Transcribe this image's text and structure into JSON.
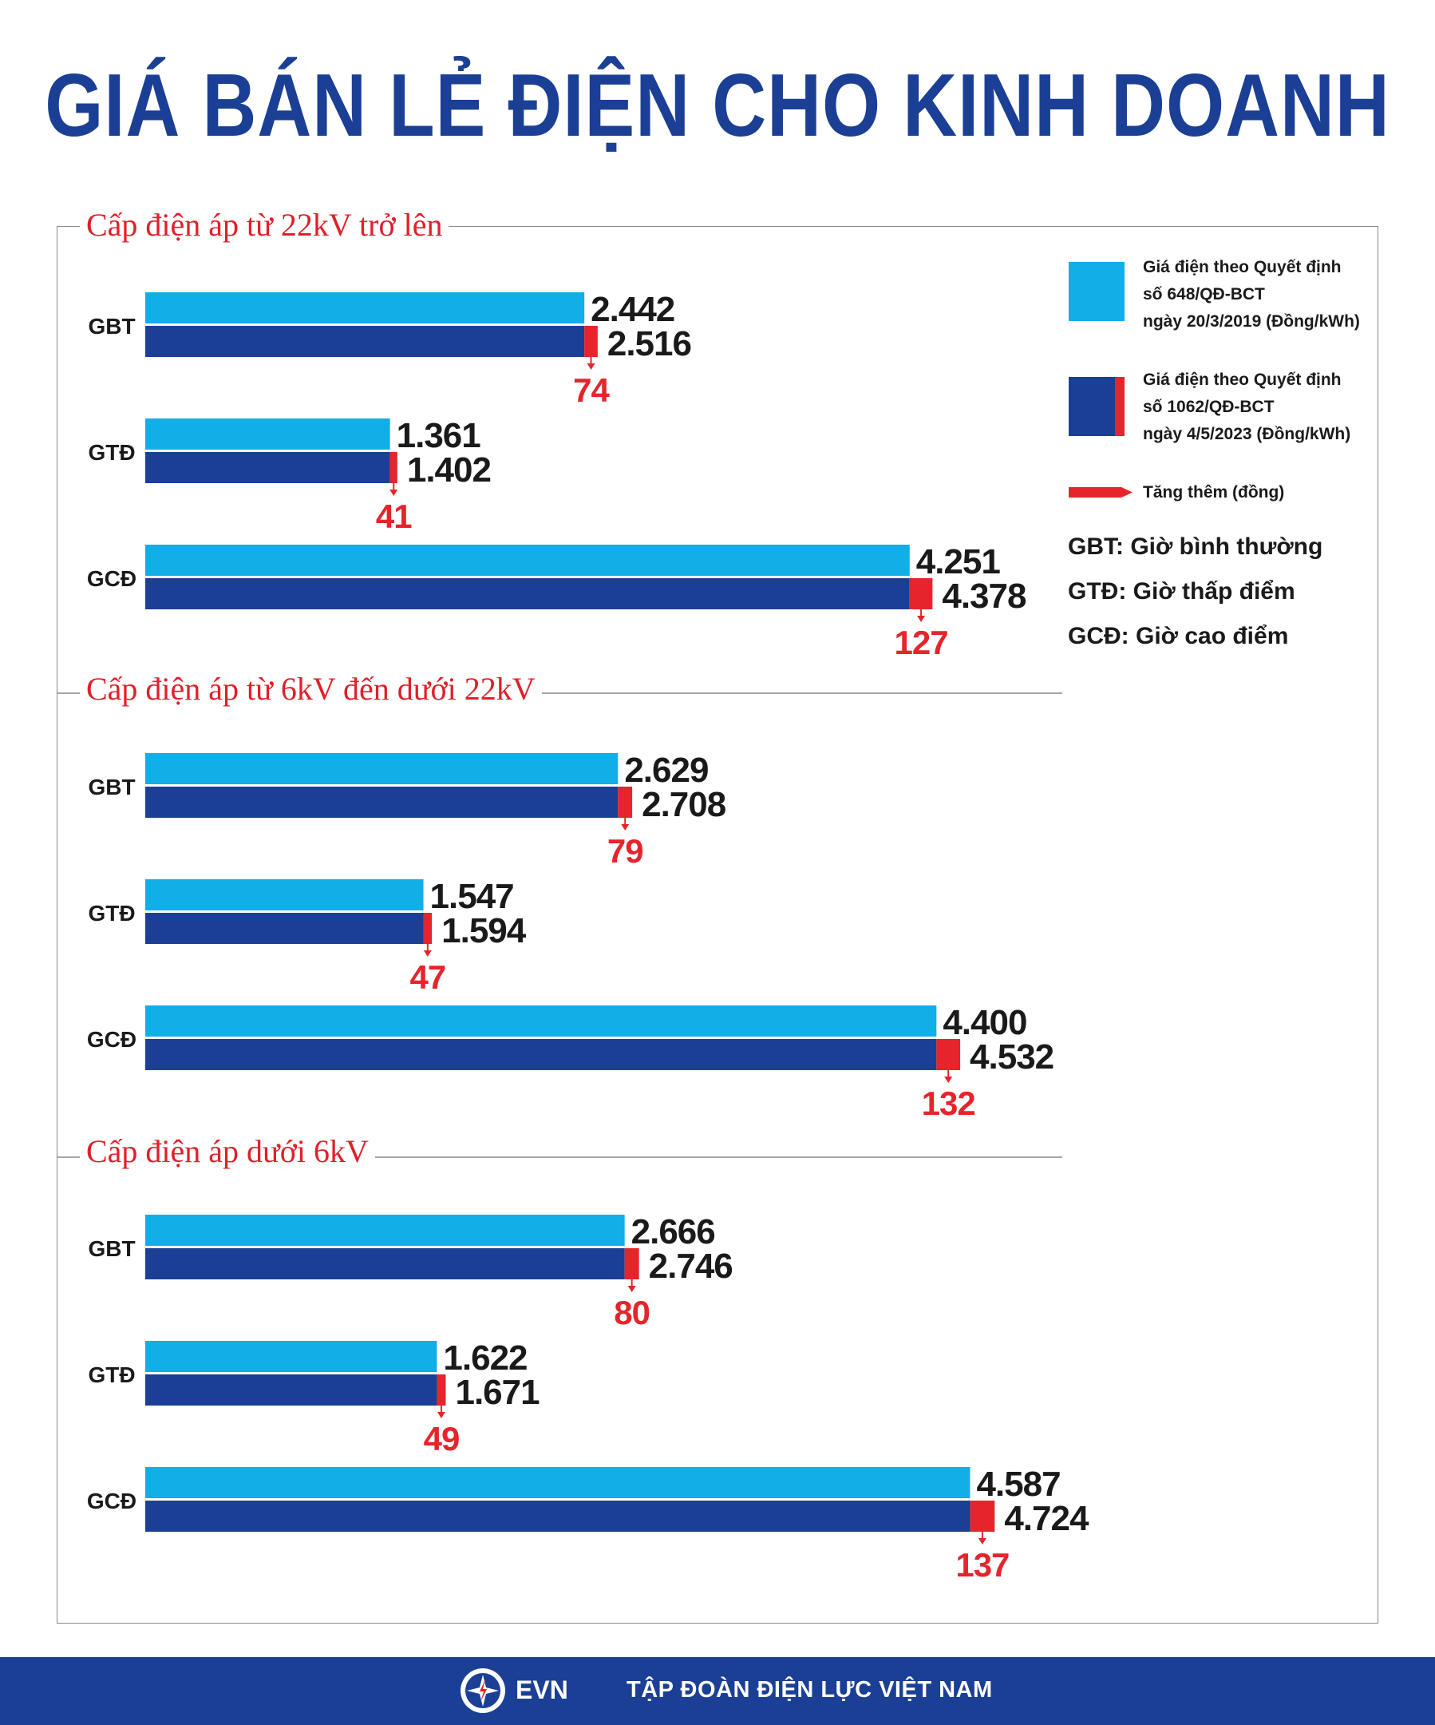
{
  "title": "GIÁ BÁN LẺ ĐIỆN CHO KINH DOANH",
  "legend": {
    "old_label": [
      "Giá điện theo Quyết định",
      "số 648/QĐ-BCT",
      "ngày 20/3/2019 (Đồng/kWh)"
    ],
    "new_label": [
      "Giá điện theo Quyết định",
      "số 1062/QĐ-BCT",
      "ngày 4/5/2023 (Đồng/kWh)"
    ],
    "increase_label": "Tăng thêm (đồng)",
    "abbreviations": [
      "GBT: Giờ bình thường",
      "GTĐ: Giờ thấp điểm",
      "GCĐ: Giờ cao điểm"
    ]
  },
  "colors": {
    "old": "#12aee8",
    "new": "#1a3f95",
    "increase": "#e6242c",
    "title": "#1a3f95",
    "section": "#e0202a"
  },
  "footer": {
    "brand": "EVN",
    "org": "TẬP ĐOÀN ĐIỆN LỰC VIỆT NAM"
  },
  "chart_data": {
    "type": "bar",
    "orientation": "horizontal",
    "series": [
      {
        "name": "Giá điện theo Quyết định số 648/QĐ-BCT ngày 20/3/2019 (Đồng/kWh)"
      },
      {
        "name": "Giá điện theo Quyết định số 1062/QĐ-BCT ngày 4/5/2023 (Đồng/kWh)"
      },
      {
        "name": "Tăng thêm (đồng)"
      }
    ],
    "groups": [
      {
        "title": "Cấp điện áp từ 22kV trở lên",
        "rows": [
          {
            "category": "GBT",
            "old": 2442,
            "new": 2516,
            "increase": 74,
            "old_label": "2.442",
            "new_label": "2.516",
            "increase_label": "74"
          },
          {
            "category": "GTĐ",
            "old": 1361,
            "new": 1402,
            "increase": 41,
            "old_label": "1.361",
            "new_label": "1.402",
            "increase_label": "41"
          },
          {
            "category": "GCĐ",
            "old": 4251,
            "new": 4378,
            "increase": 127,
            "old_label": "4.251",
            "new_label": "4.378",
            "increase_label": "127"
          }
        ]
      },
      {
        "title": "Cấp điện áp từ 6kV đến dưới 22kV",
        "rows": [
          {
            "category": "GBT",
            "old": 2629,
            "new": 2708,
            "increase": 79,
            "old_label": "2.629",
            "new_label": "2.708",
            "increase_label": "79"
          },
          {
            "category": "GTĐ",
            "old": 1547,
            "new": 1594,
            "increase": 47,
            "old_label": "1.547",
            "new_label": "1.594",
            "increase_label": "47"
          },
          {
            "category": "GCĐ",
            "old": 4400,
            "new": 4532,
            "increase": 132,
            "old_label": "4.400",
            "new_label": "4.532",
            "increase_label": "132"
          }
        ]
      },
      {
        "title": "Cấp điện áp dưới 6kV",
        "rows": [
          {
            "category": "GBT",
            "old": 2666,
            "new": 2746,
            "increase": 80,
            "old_label": "2.666",
            "new_label": "2.746",
            "increase_label": "80"
          },
          {
            "category": "GTĐ",
            "old": 1622,
            "new": 1671,
            "increase": 49,
            "old_label": "1.622",
            "new_label": "1.671",
            "increase_label": "49"
          },
          {
            "category": "GCĐ",
            "old": 4587,
            "new": 4724,
            "increase": 137,
            "old_label": "4.587",
            "new_label": "4.724",
            "increase_label": "137"
          }
        ]
      }
    ]
  }
}
